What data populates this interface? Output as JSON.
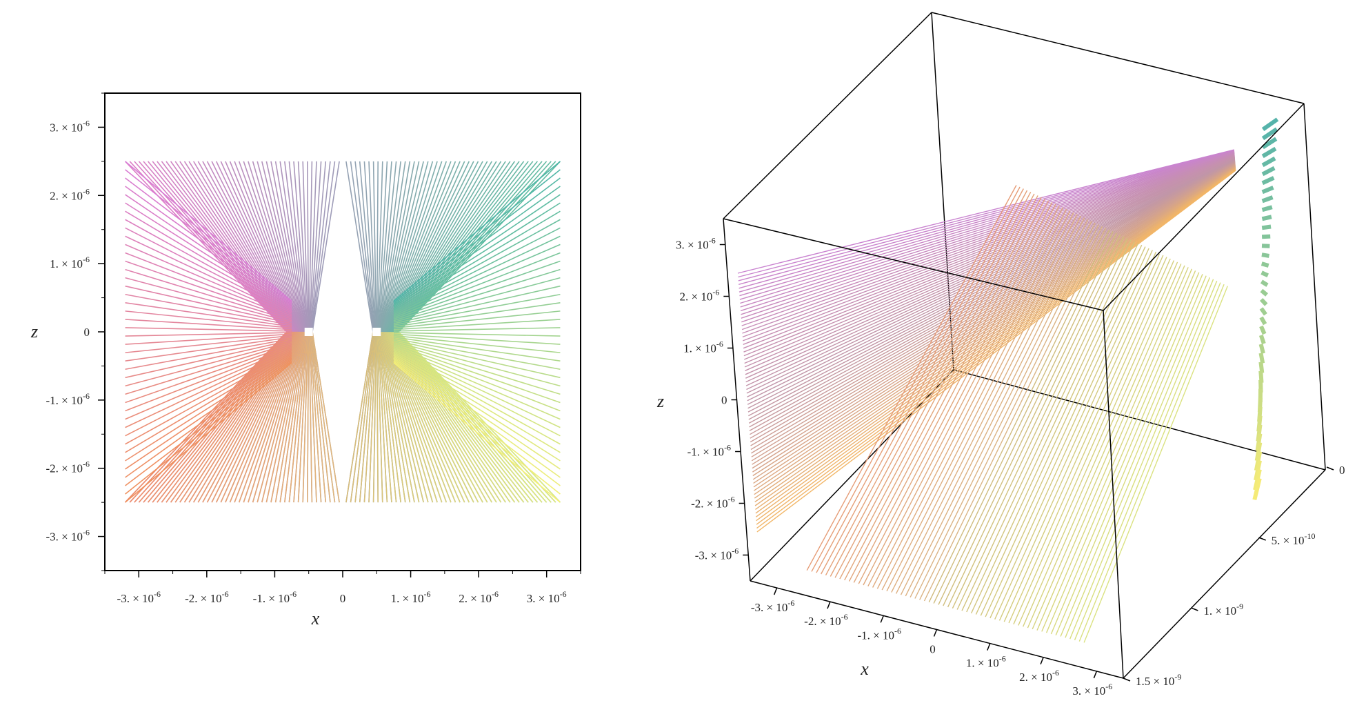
{
  "chart_data": [
    {
      "type": "line",
      "view": "2d projection (x-z plane)",
      "xlabel": "x",
      "ylabel": "z",
      "xlim": [
        -3.5e-06,
        3.5e-06
      ],
      "ylim": [
        -3.5e-06,
        3.5e-06
      ],
      "x_ticks": [
        "-3. × 10-6",
        "-2. × 10-6",
        "-1. × 10-6",
        "0",
        "1. × 10-6",
        "2. × 10-6",
        "3. × 10-6"
      ],
      "y_ticks": [
        "3. × 10-6",
        "2. × 10-6",
        "1. × 10-6",
        "0",
        "-1. × 10-6",
        "-2. × 10-6",
        "-3. × 10-6"
      ],
      "grid": false,
      "line_endpoints_z": [
        2.5e-06,
        -2.5e-06
      ],
      "line_endpoints_x_range": [
        -3.2e-06,
        3.2e-06
      ],
      "gaps_x": [
        -5e-07,
        5e-07
      ],
      "color_gradient": [
        "#e07ad8",
        "#f5f57a"
      ]
    },
    {
      "type": "line",
      "view": "3d perspective",
      "xlabel": "x",
      "ylabel": "",
      "zlabel": "z",
      "x_ticks": [
        "-3. × 10-6",
        "-2. × 10-6",
        "-1. × 10-6",
        "0",
        "1. × 10-6",
        "2. × 10-6",
        "3. × 10-6"
      ],
      "y_ticks": [
        "0",
        "5. × 10-10",
        "1. × 10-9",
        "1.5 × 10-9"
      ],
      "z_ticks": [
        "3. × 10-6",
        "2. × 10-6",
        "1. × 10-6",
        "0",
        "-1. × 10-6",
        "-2. × 10-6",
        "-3. × 10-6"
      ],
      "ylim": [
        0,
        1.5e-09
      ],
      "box": true,
      "color_gradient": [
        "#e07ad8",
        "#f5f57a"
      ]
    }
  ]
}
